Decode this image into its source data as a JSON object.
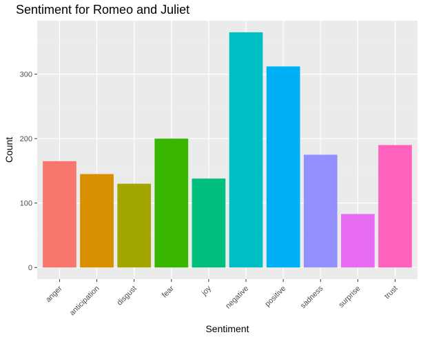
{
  "chart_data": {
    "type": "bar",
    "title": "Sentiment for Romeo and Juliet",
    "xlabel": "Sentiment",
    "ylabel": "Count",
    "categories": [
      "anger",
      "anticipation",
      "disgust",
      "fear",
      "joy",
      "negative",
      "positive",
      "sadness",
      "surprise",
      "trust"
    ],
    "values": [
      165,
      145,
      130,
      200,
      138,
      365,
      312,
      175,
      83,
      190
    ],
    "colors": [
      "#F8766D",
      "#D89000",
      "#A3A500",
      "#39B600",
      "#00BF7D",
      "#00BFC4",
      "#00B0F6",
      "#9590FF",
      "#E76BF3",
      "#FF62BC"
    ],
    "yticks": [
      0,
      100,
      200,
      300
    ],
    "ylim": [
      -18,
      383
    ],
    "grid": true,
    "legend": "none"
  }
}
